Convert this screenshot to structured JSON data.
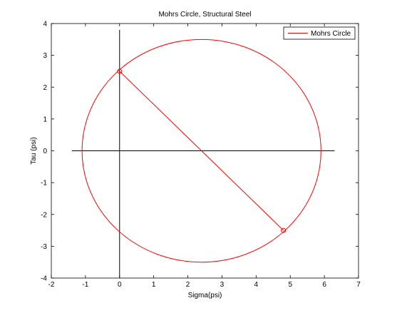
{
  "chart_data": {
    "type": "line",
    "title": "Mohrs Circle, Structural Steel",
    "xlabel": "Sigma(psi)",
    "ylabel": "Tau (psi)",
    "xlim": [
      -2,
      7
    ],
    "ylim": [
      -4,
      4
    ],
    "xticks": [
      -2,
      -1,
      0,
      1,
      2,
      3,
      4,
      5,
      6,
      7
    ],
    "yticks": [
      -4,
      -3,
      -2,
      -1,
      0,
      1,
      2,
      3,
      4
    ],
    "grid": false,
    "legend": {
      "position": "top-right",
      "entries": [
        "Mohrs Circle"
      ]
    },
    "series": [
      {
        "name": "Mohrs Circle",
        "shape": "circle",
        "center": [
          2.4,
          0
        ],
        "radius": 3.5,
        "color": "#ff0000"
      }
    ],
    "diameter_line": {
      "points": [
        [
          0,
          2.5
        ],
        [
          4.8,
          -2.5
        ]
      ],
      "color": "#ff0000",
      "marker": "circle"
    },
    "reference_axes": {
      "horizontal": {
        "y": 0,
        "x_from": -1.4,
        "x_to": 6.3
      },
      "vertical": {
        "x": 0,
        "y_from": -4,
        "y_to": 3.8
      },
      "color": "#000000"
    }
  }
}
